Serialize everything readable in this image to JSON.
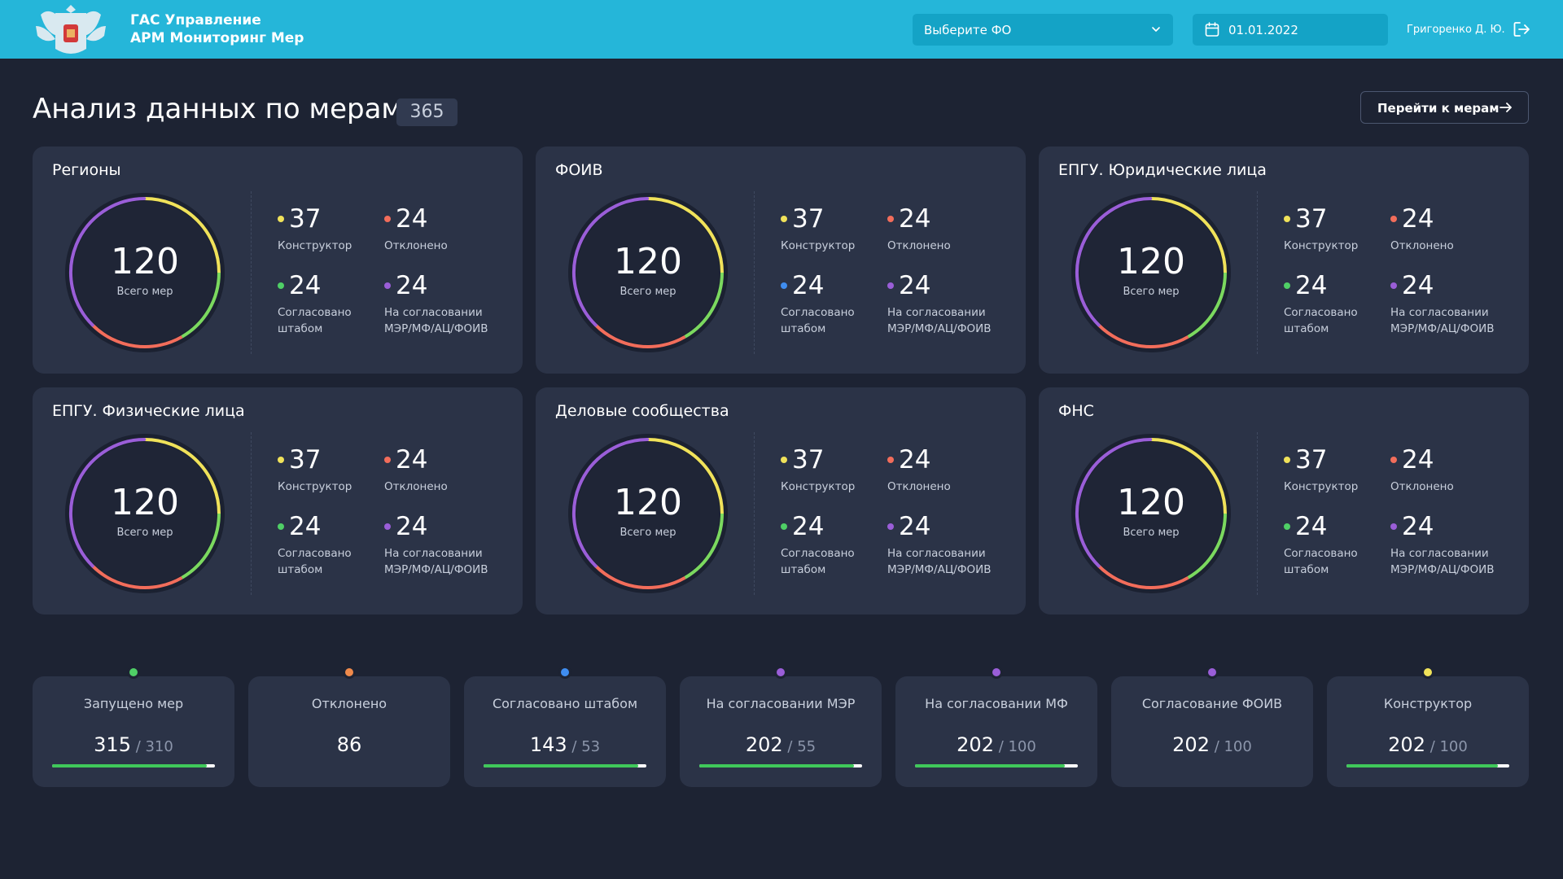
{
  "header": {
    "app_title_line1": "ГАС Управление",
    "app_title_line2": "АРМ Мониторинг Мер",
    "fo_select": {
      "value": "Выберите ФО"
    },
    "date": {
      "value": "01.01.2022"
    },
    "user": "Григоренко Д. Ю."
  },
  "page": {
    "title": "Анализ данных по мерам",
    "count": "365",
    "goto_button": "Перейти к мерам"
  },
  "colors": {
    "yellow": "#f0e25a",
    "red": "#f26d5b",
    "green": "#4fcf66",
    "purple": "#9a5ed8",
    "blue": "#3f8df0",
    "orange": "#f08a4b"
  },
  "cards": [
    {
      "title": "Регионы",
      "total": "120",
      "total_label": "Всего мер",
      "stats": [
        {
          "value": "37",
          "label_lines": [
            "Конструктор"
          ],
          "color": "#f0e25a"
        },
        {
          "value": "24",
          "label_lines": [
            "Отклонено"
          ],
          "color": "#f26d5b"
        },
        {
          "value": "24",
          "label_lines": [
            "Согласовано",
            "штабом"
          ],
          "color": "#4fcf66"
        },
        {
          "value": "24",
          "label_lines": [
            "На согласовании",
            "МЭР/МФ/АЦ/ФОИВ"
          ],
          "color": "#9a5ed8"
        }
      ]
    },
    {
      "title": "ФОИВ",
      "total": "120",
      "total_label": "Всего мер",
      "stats": [
        {
          "value": "37",
          "label_lines": [
            "Конструктор"
          ],
          "color": "#f0e25a"
        },
        {
          "value": "24",
          "label_lines": [
            "Отклонено"
          ],
          "color": "#f26d5b"
        },
        {
          "value": "24",
          "label_lines": [
            "Согласовано",
            "штабом"
          ],
          "color": "#3f8df0"
        },
        {
          "value": "24",
          "label_lines": [
            "На согласовании",
            "МЭР/МФ/АЦ/ФОИВ"
          ],
          "color": "#9a5ed8"
        }
      ]
    },
    {
      "title": "ЕПГУ. Юридические лица",
      "total": "120",
      "total_label": "Всего мер",
      "stats": [
        {
          "value": "37",
          "label_lines": [
            "Конструктор"
          ],
          "color": "#f0e25a"
        },
        {
          "value": "24",
          "label_lines": [
            "Отклонено"
          ],
          "color": "#f26d5b"
        },
        {
          "value": "24",
          "label_lines": [
            "Согласовано",
            "штабом"
          ],
          "color": "#4fcf66"
        },
        {
          "value": "24",
          "label_lines": [
            "На согласовании",
            "МЭР/МФ/АЦ/ФОИВ"
          ],
          "color": "#9a5ed8"
        }
      ]
    },
    {
      "title": "ЕПГУ. Физические лица",
      "total": "120",
      "total_label": "Всего мер",
      "stats": [
        {
          "value": "37",
          "label_lines": [
            "Конструктор"
          ],
          "color": "#f0e25a"
        },
        {
          "value": "24",
          "label_lines": [
            "Отклонено"
          ],
          "color": "#f26d5b"
        },
        {
          "value": "24",
          "label_lines": [
            "Согласовано",
            "штабом"
          ],
          "color": "#4fcf66"
        },
        {
          "value": "24",
          "label_lines": [
            "На согласовании",
            "МЭР/МФ/АЦ/ФОИВ"
          ],
          "color": "#9a5ed8"
        }
      ]
    },
    {
      "title": "Деловые сообщества",
      "total": "120",
      "total_label": "Всего мер",
      "stats": [
        {
          "value": "37",
          "label_lines": [
            "Конструктор"
          ],
          "color": "#f0e25a"
        },
        {
          "value": "24",
          "label_lines": [
            "Отклонено"
          ],
          "color": "#f26d5b"
        },
        {
          "value": "24",
          "label_lines": [
            "Согласовано",
            "штабом"
          ],
          "color": "#4fcf66"
        },
        {
          "value": "24",
          "label_lines": [
            "На согласовании",
            "МЭР/МФ/АЦ/ФОИВ"
          ],
          "color": "#9a5ed8"
        }
      ]
    },
    {
      "title": "ФНС",
      "total": "120",
      "total_label": "Всего мер",
      "stats": [
        {
          "value": "37",
          "label_lines": [
            "Конструктор"
          ],
          "color": "#f0e25a"
        },
        {
          "value": "24",
          "label_lines": [
            "Отклонено"
          ],
          "color": "#f26d5b"
        },
        {
          "value": "24",
          "label_lines": [
            "Согласовано",
            "штабом"
          ],
          "color": "#4fcf66"
        },
        {
          "value": "24",
          "label_lines": [
            "На согласовании",
            "МЭР/МФ/АЦ/ФОИВ"
          ],
          "color": "#9a5ed8"
        }
      ]
    }
  ],
  "tiles": [
    {
      "label": "Запущено мер",
      "value": "315",
      "total": "310",
      "color": "#4fcf66",
      "progress": 0.95
    },
    {
      "label": "Отклонено",
      "value": "86",
      "total": "",
      "color": "#f08a4b",
      "progress": null
    },
    {
      "label": "Согласовано штабом",
      "value": "143",
      "total": "53",
      "color": "#3f8df0",
      "progress": 0.95
    },
    {
      "label": "На согласовании МЭР",
      "value": "202",
      "total": "55",
      "color": "#9a5ed8",
      "progress": 0.95
    },
    {
      "label": "На согласовании МФ",
      "value": "202",
      "total": "100",
      "color": "#9a5ed8",
      "progress": 0.92
    },
    {
      "label": "Согласование ФОИВ",
      "value": "202",
      "total": "100",
      "color": "#9a5ed8",
      "progress": null
    },
    {
      "label": "Конструктор",
      "value": "202",
      "total": "100",
      "color": "#f0e25a",
      "progress": 0.93
    }
  ]
}
